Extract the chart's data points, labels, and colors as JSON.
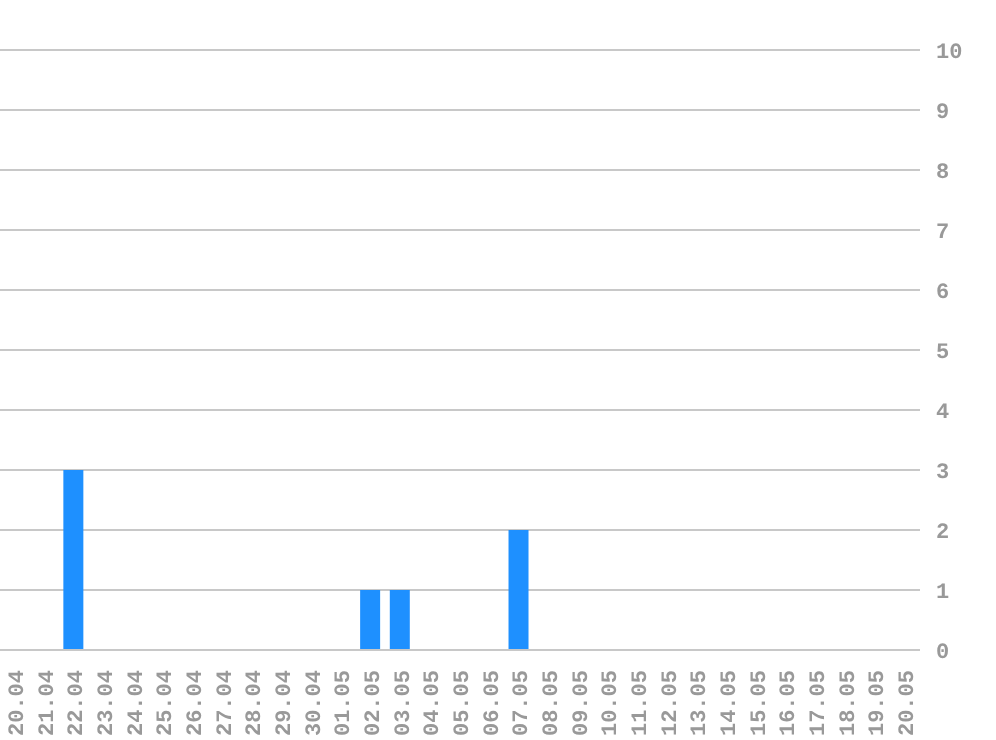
{
  "chart_data": {
    "type": "bar",
    "categories": [
      "20.04",
      "21.04",
      "22.04",
      "23.04",
      "24.04",
      "25.04",
      "26.04",
      "27.04",
      "28.04",
      "29.04",
      "30.04",
      "01.05",
      "02.05",
      "03.05",
      "04.05",
      "05.05",
      "06.05",
      "07.05",
      "08.05",
      "09.05",
      "10.05",
      "11.05",
      "12.05",
      "13.05",
      "14.05",
      "15.05",
      "16.05",
      "17.05",
      "18.05",
      "19.05",
      "20.05"
    ],
    "values": [
      0,
      0,
      3,
      0,
      0,
      0,
      0,
      0,
      0,
      0,
      0,
      0,
      1,
      1,
      0,
      0,
      0,
      2,
      0,
      0,
      0,
      0,
      0,
      0,
      0,
      0,
      0,
      0,
      0,
      0,
      0
    ],
    "color": "#1e90ff",
    "ylim": [
      0,
      10
    ],
    "yticks": [
      0,
      1,
      2,
      3,
      4,
      5,
      6,
      7,
      8,
      9,
      10
    ],
    "grid": "y"
  }
}
